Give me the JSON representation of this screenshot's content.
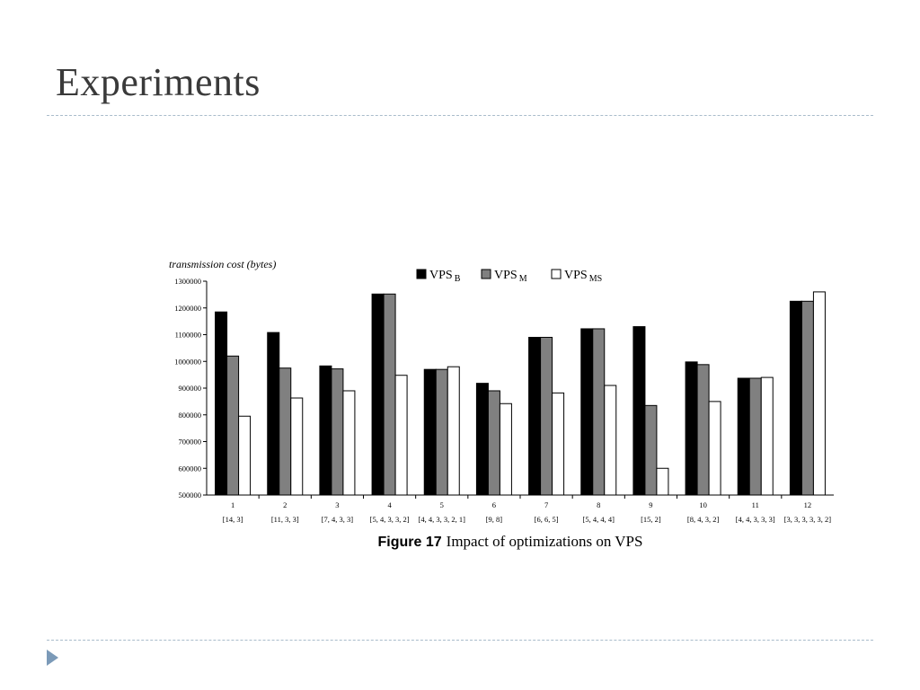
{
  "slide": {
    "title": "Experiments"
  },
  "chart_data": {
    "type": "bar",
    "ylabel": "transmission cost  (bytes)",
    "caption_bold": "Figure 17",
    "caption_rest": "Impact of optimizations on VPS",
    "categories": [
      "1",
      "2",
      "3",
      "4",
      "5",
      "6",
      "7",
      "8",
      "9",
      "10",
      "11",
      "12"
    ],
    "category_sublabels": [
      "[14, 3]",
      "[11, 3, 3]",
      "[7, 4, 3, 3]",
      "[5, 4, 3, 3, 2]",
      "[4, 4, 3, 3, 2, 1]",
      "[9, 8]",
      "[6, 6, 5]",
      "[5, 4, 4, 4]",
      "[15, 2]",
      "[8, 4, 3, 2]",
      "[4, 4, 3, 3, 3]",
      "[3, 3, 3, 3, 3, 2]"
    ],
    "ylim": [
      500000,
      1300000
    ],
    "yticks": [
      500000,
      600000,
      700000,
      800000,
      900000,
      1000000,
      1100000,
      1200000,
      1300000
    ],
    "legend_position": "top-center",
    "grid": false,
    "series": [
      {
        "name": "VPS",
        "subscript": "B",
        "color": "#000000",
        "values": [
          1185000,
          1108000,
          983000,
          1252000,
          970000,
          918000,
          1090000,
          1122000,
          1130000,
          998000,
          937000,
          1225000
        ]
      },
      {
        "name": "VPS",
        "subscript": "M",
        "color": "#808080",
        "values": [
          1020000,
          975000,
          972000,
          1252000,
          970000,
          890000,
          1090000,
          1122000,
          835000,
          988000,
          937000,
          1225000
        ]
      },
      {
        "name": "VPS",
        "subscript": "MS",
        "color": "#ffffff",
        "values": [
          795000,
          863000,
          890000,
          948000,
          980000,
          842000,
          882000,
          910000,
          600000,
          850000,
          940000,
          1260000
        ]
      }
    ]
  }
}
